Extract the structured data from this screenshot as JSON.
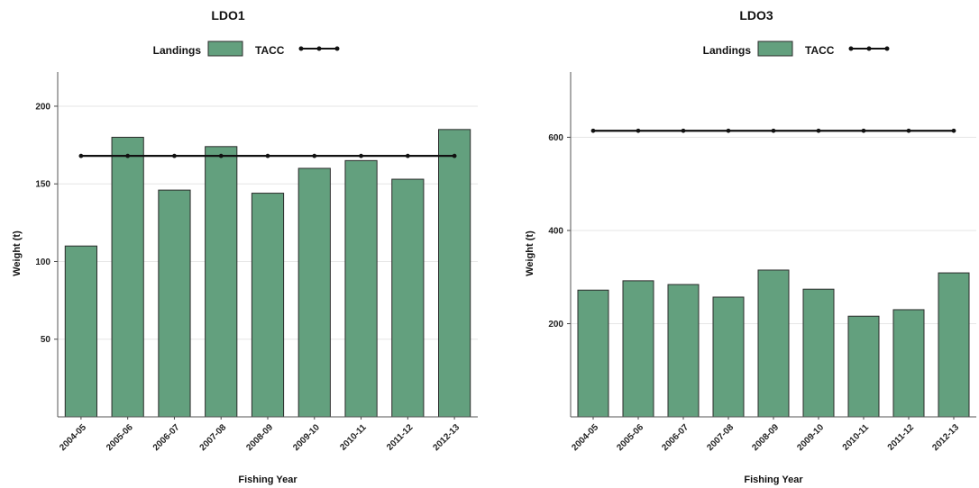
{
  "page": {
    "background": "#ffffff"
  },
  "chart_data": [
    {
      "type": "bar",
      "title": "LDO1",
      "xlabel": "Fishing Year",
      "ylabel": "Weight (t)",
      "ylim": [
        0,
        222
      ],
      "yticks": [
        50,
        100,
        150,
        200
      ],
      "grid": true,
      "legend_position": "top-center",
      "categories": [
        "2004-05",
        "2005-06",
        "2006-07",
        "2007-08",
        "2008-09",
        "2009-10",
        "2010-11",
        "2011-12",
        "2012-13"
      ],
      "series": [
        {
          "name": "Landings",
          "kind": "bar",
          "color": "#63a07e",
          "values": [
            110,
            180,
            146,
            174,
            144,
            160,
            165,
            153,
            185
          ]
        },
        {
          "name": "TACC",
          "kind": "line",
          "color": "#111111",
          "values": [
            168,
            168,
            168,
            168,
            168,
            168,
            168,
            168,
            168
          ]
        }
      ]
    },
    {
      "type": "bar",
      "title": "LDO3",
      "xlabel": "Fishing Year",
      "ylabel": "Weight (t)",
      "ylim": [
        0,
        740
      ],
      "yticks": [
        200,
        400,
        600
      ],
      "grid": true,
      "legend_position": "top-center",
      "categories": [
        "2004-05",
        "2005-06",
        "2006-07",
        "2007-08",
        "2008-09",
        "2009-10",
        "2010-11",
        "2011-12",
        "2012-13"
      ],
      "series": [
        {
          "name": "Landings",
          "kind": "bar",
          "color": "#63a07e",
          "values": [
            272,
            292,
            284,
            257,
            315,
            274,
            216,
            230,
            309
          ]
        },
        {
          "name": "TACC",
          "kind": "line",
          "color": "#111111",
          "values": [
            614,
            614,
            614,
            614,
            614,
            614,
            614,
            614,
            614
          ]
        }
      ]
    }
  ]
}
